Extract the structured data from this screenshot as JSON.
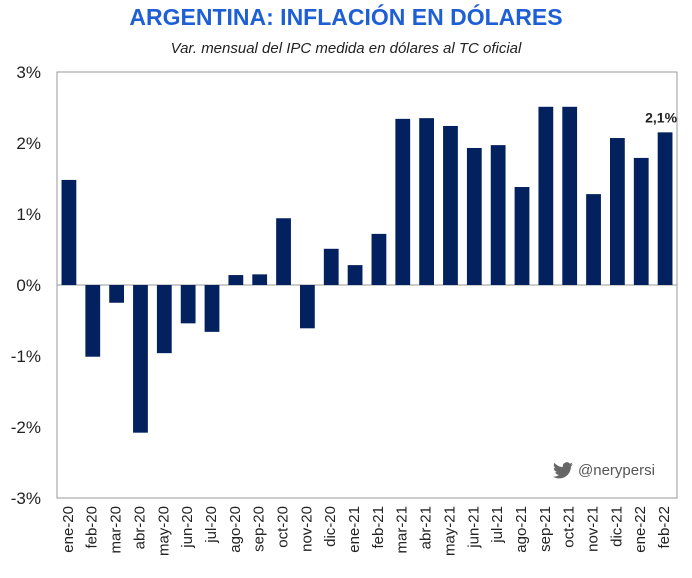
{
  "chart_data": {
    "type": "bar",
    "title": "ARGENTINA: INFLACIÓN EN DÓLARES",
    "subtitle": "Var. mensual del IPC medida en dólares al TC oficial",
    "categories": [
      "ene-20",
      "feb-20",
      "mar-20",
      "abr-20",
      "may-20",
      "jun-20",
      "jul-20",
      "ago-20",
      "sep-20",
      "oct-20",
      "nov-20",
      "dic-20",
      "ene-21",
      "feb-21",
      "mar-21",
      "abr-21",
      "may-21",
      "jun-21",
      "jul-21",
      "ago-21",
      "sep-21",
      "oct-21",
      "nov-21",
      "dic-21",
      "ene-22",
      "feb-22"
    ],
    "values": [
      1.48,
      -1.01,
      -0.25,
      -2.08,
      -0.96,
      -0.54,
      -0.66,
      0.14,
      0.15,
      0.94,
      -0.61,
      0.51,
      0.28,
      0.72,
      2.34,
      2.35,
      2.24,
      1.93,
      1.97,
      1.38,
      2.51,
      2.51,
      1.28,
      2.07,
      1.79,
      2.15
    ],
    "ylim": [
      -3,
      3
    ],
    "yticks": [
      "-3%",
      "-2%",
      "-1%",
      "0%",
      "1%",
      "2%",
      "3%"
    ],
    "annotation": "2,1%",
    "bar_color": "#03215e",
    "grid": false
  },
  "credit": "@nerypersi"
}
